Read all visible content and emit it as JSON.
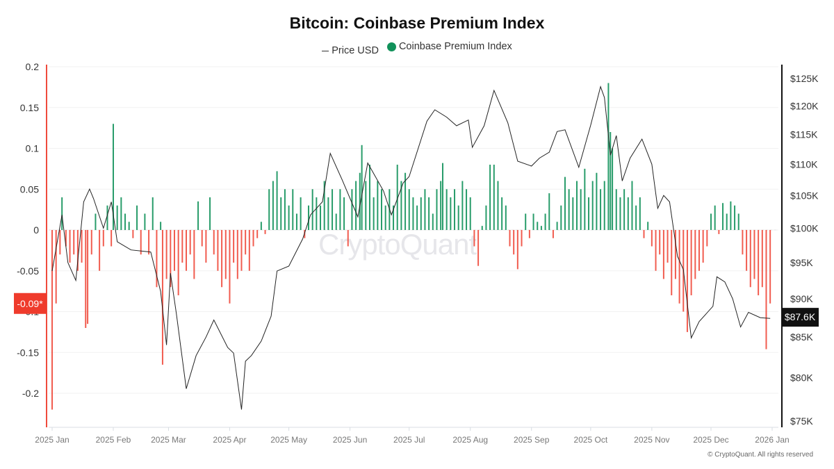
{
  "chart_data": {
    "type": "bar+line",
    "title": "Bitcoin: Coinbase Premium Index",
    "legend": [
      {
        "name": "Price USD",
        "symbol": "line",
        "color": "#333333"
      },
      {
        "name": "Coinbase Premium Index",
        "symbol": "dot",
        "color": "#11915a"
      }
    ],
    "legend_position": "top-center",
    "watermark": "CryptoQuant",
    "copyright": "© CryptoQuant. All rights reserved",
    "grid": true,
    "x_axis": {
      "type": "date",
      "range": [
        "2025-01-01",
        "2026-01-01"
      ],
      "ticks": [
        "2025 Jan",
        "2025 Feb",
        "2025 Mar",
        "2025 Apr",
        "2025 May",
        "2025 Jun",
        "2025 Jul",
        "2025 Aug",
        "2025 Sep",
        "2025 Oct",
        "2025 Nov",
        "2025 Dec",
        "2026 Jan"
      ],
      "tick_dates": [
        "2025-01-01",
        "2025-02-01",
        "2025-03-01",
        "2025-04-01",
        "2025-05-01",
        "2025-06-01",
        "2025-07-01",
        "2025-08-01",
        "2025-09-01",
        "2025-10-01",
        "2025-11-01",
        "2025-12-01",
        "2026-01-01"
      ]
    },
    "y_left": {
      "range": [
        -0.24,
        0.2
      ],
      "ticks": [
        "0.2",
        "0.15",
        "0.1",
        "0.05",
        "0",
        "-0.05",
        "-0.1",
        "-0.15",
        "-0.2"
      ],
      "tick_values": [
        0.2,
        0.15,
        0.1,
        0.05,
        0,
        -0.05,
        -0.1,
        -0.15,
        -0.2
      ],
      "current_label": "-0.09*",
      "current_value": -0.09
    },
    "y_right": {
      "scale": "log",
      "range": [
        75000,
        128000
      ],
      "ticks": [
        "$125K",
        "$120K",
        "$115K",
        "$110K",
        "$105K",
        "$100K",
        "$95K",
        "$90K",
        "$85K",
        "$80K",
        "$75K"
      ],
      "tick_values": [
        125000,
        120000,
        115000,
        110000,
        105000,
        100000,
        95000,
        90000,
        85000,
        80000,
        75000
      ],
      "current_label": "$87.6K",
      "current_value": 87600
    },
    "colors": {
      "positive": "#11915a",
      "negative": "#ef4a3c",
      "price": "#222222",
      "current_premium_badge": "#ef3b2c",
      "current_price_badge": "#111111"
    },
    "premium": [
      [
        "2025-01-01",
        -0.22
      ],
      [
        "2025-01-03",
        -0.09
      ],
      [
        "2025-01-05",
        -0.03
      ],
      [
        "2025-01-06",
        0.04
      ],
      [
        "2025-01-08",
        -0.02
      ],
      [
        "2025-01-10",
        -0.04
      ],
      [
        "2025-01-12",
        -0.03
      ],
      [
        "2025-01-14",
        -0.05
      ],
      [
        "2025-01-16",
        -0.04
      ],
      [
        "2025-01-18",
        -0.12
      ],
      [
        "2025-01-19",
        -0.115
      ],
      [
        "2025-01-21",
        -0.03
      ],
      [
        "2025-01-23",
        0.02
      ],
      [
        "2025-01-25",
        -0.05
      ],
      [
        "2025-01-27",
        -0.02
      ],
      [
        "2025-01-29",
        0.03
      ],
      [
        "2025-01-31",
        -0.02
      ],
      [
        "2025-02-01",
        0.13
      ],
      [
        "2025-02-03",
        0.03
      ],
      [
        "2025-02-05",
        0.04
      ],
      [
        "2025-02-07",
        0.02
      ],
      [
        "2025-02-09",
        0.01
      ],
      [
        "2025-02-11",
        -0.01
      ],
      [
        "2025-02-13",
        0.03
      ],
      [
        "2025-02-15",
        -0.03
      ],
      [
        "2025-02-17",
        0.02
      ],
      [
        "2025-02-19",
        -0.03
      ],
      [
        "2025-02-21",
        0.04
      ],
      [
        "2025-02-23",
        -0.07
      ],
      [
        "2025-02-25",
        0.01
      ],
      [
        "2025-02-26",
        -0.165
      ],
      [
        "2025-02-28",
        -0.06
      ],
      [
        "2025-03-02",
        -0.07
      ],
      [
        "2025-03-04",
        -0.05
      ],
      [
        "2025-03-06",
        -0.08
      ],
      [
        "2025-03-08",
        -0.04
      ],
      [
        "2025-03-10",
        -0.05
      ],
      [
        "2025-03-12",
        -0.03
      ],
      [
        "2025-03-14",
        -0.06
      ],
      [
        "2025-03-16",
        0.035
      ],
      [
        "2025-03-18",
        -0.02
      ],
      [
        "2025-03-20",
        -0.04
      ],
      [
        "2025-03-22",
        0.04
      ],
      [
        "2025-03-24",
        -0.03
      ],
      [
        "2025-03-26",
        -0.05
      ],
      [
        "2025-03-28",
        -0.07
      ],
      [
        "2025-03-30",
        -0.06
      ],
      [
        "2025-04-01",
        -0.09
      ],
      [
        "2025-04-03",
        -0.04
      ],
      [
        "2025-04-05",
        -0.06
      ],
      [
        "2025-04-07",
        -0.05
      ],
      [
        "2025-04-09",
        -0.03
      ],
      [
        "2025-04-11",
        -0.05
      ],
      [
        "2025-04-13",
        -0.02
      ],
      [
        "2025-04-15",
        -0.01
      ],
      [
        "2025-04-17",
        0.01
      ],
      [
        "2025-04-19",
        -0.005
      ],
      [
        "2025-04-21",
        0.05
      ],
      [
        "2025-04-23",
        0.06
      ],
      [
        "2025-04-25",
        0.072
      ],
      [
        "2025-04-27",
        0.04
      ],
      [
        "2025-04-29",
        0.05
      ],
      [
        "2025-05-01",
        0.03
      ],
      [
        "2025-05-03",
        0.05
      ],
      [
        "2025-05-05",
        0.02
      ],
      [
        "2025-05-07",
        0.04
      ],
      [
        "2025-05-09",
        -0.01
      ],
      [
        "2025-05-11",
        0.03
      ],
      [
        "2025-05-13",
        0.05
      ],
      [
        "2025-05-15",
        0.04
      ],
      [
        "2025-05-17",
        0.03
      ],
      [
        "2025-05-19",
        0.06
      ],
      [
        "2025-05-21",
        0.04
      ],
      [
        "2025-05-23",
        0.05
      ],
      [
        "2025-05-25",
        0.02
      ],
      [
        "2025-05-27",
        0.05
      ],
      [
        "2025-05-29",
        0.04
      ],
      [
        "2025-05-31",
        -0.02
      ],
      [
        "2025-06-02",
        0.05
      ],
      [
        "2025-06-04",
        0.06
      ],
      [
        "2025-06-06",
        0.07
      ],
      [
        "2025-06-07",
        0.104
      ],
      [
        "2025-06-09",
        0.06
      ],
      [
        "2025-06-11",
        0.08
      ],
      [
        "2025-06-13",
        0.04
      ],
      [
        "2025-06-15",
        0.06
      ],
      [
        "2025-06-17",
        0.05
      ],
      [
        "2025-06-19",
        0.03
      ],
      [
        "2025-06-21",
        0.05
      ],
      [
        "2025-06-23",
        0.03
      ],
      [
        "2025-06-25",
        0.08
      ],
      [
        "2025-06-27",
        0.06
      ],
      [
        "2025-06-29",
        0.07
      ],
      [
        "2025-07-01",
        0.05
      ],
      [
        "2025-07-03",
        0.04
      ],
      [
        "2025-07-05",
        0.03
      ],
      [
        "2025-07-07",
        0.04
      ],
      [
        "2025-07-09",
        0.05
      ],
      [
        "2025-07-11",
        0.04
      ],
      [
        "2025-07-13",
        0.02
      ],
      [
        "2025-07-15",
        0.05
      ],
      [
        "2025-07-17",
        0.06
      ],
      [
        "2025-07-18",
        0.082
      ],
      [
        "2025-07-20",
        0.05
      ],
      [
        "2025-07-22",
        0.04
      ],
      [
        "2025-07-24",
        0.05
      ],
      [
        "2025-07-26",
        0.03
      ],
      [
        "2025-07-28",
        0.06
      ],
      [
        "2025-07-30",
        0.05
      ],
      [
        "2025-08-01",
        0.04
      ],
      [
        "2025-08-03",
        -0.02
      ],
      [
        "2025-08-05",
        -0.044
      ],
      [
        "2025-08-07",
        0.005
      ],
      [
        "2025-08-09",
        0.03
      ],
      [
        "2025-08-11",
        0.08
      ],
      [
        "2025-08-13",
        0.08
      ],
      [
        "2025-08-15",
        0.06
      ],
      [
        "2025-08-17",
        0.04
      ],
      [
        "2025-08-19",
        0.03
      ],
      [
        "2025-08-21",
        -0.02
      ],
      [
        "2025-08-23",
        -0.03
      ],
      [
        "2025-08-25",
        -0.048
      ],
      [
        "2025-08-27",
        -0.02
      ],
      [
        "2025-08-29",
        0.02
      ],
      [
        "2025-08-31",
        -0.01
      ],
      [
        "2025-09-02",
        0.02
      ],
      [
        "2025-09-04",
        0.01
      ],
      [
        "2025-09-06",
        0.005
      ],
      [
        "2025-09-08",
        0.02
      ],
      [
        "2025-09-10",
        0.045
      ],
      [
        "2025-09-12",
        -0.01
      ],
      [
        "2025-09-14",
        0.01
      ],
      [
        "2025-09-16",
        0.03
      ],
      [
        "2025-09-18",
        0.065
      ],
      [
        "2025-09-20",
        0.05
      ],
      [
        "2025-09-22",
        0.04
      ],
      [
        "2025-09-24",
        0.06
      ],
      [
        "2025-09-26",
        0.05
      ],
      [
        "2025-09-28",
        0.075
      ],
      [
        "2025-09-30",
        0.04
      ],
      [
        "2025-10-02",
        0.06
      ],
      [
        "2025-10-04",
        0.07
      ],
      [
        "2025-10-06",
        0.05
      ],
      [
        "2025-10-08",
        0.06
      ],
      [
        "2025-10-10",
        0.18
      ],
      [
        "2025-10-11",
        0.12
      ],
      [
        "2025-10-12",
        0.1
      ],
      [
        "2025-10-14",
        0.05
      ],
      [
        "2025-10-16",
        0.04
      ],
      [
        "2025-10-18",
        0.05
      ],
      [
        "2025-10-20",
        0.04
      ],
      [
        "2025-10-22",
        0.06
      ],
      [
        "2025-10-24",
        0.03
      ],
      [
        "2025-10-26",
        0.04
      ],
      [
        "2025-10-28",
        -0.01
      ],
      [
        "2025-10-30",
        0.01
      ],
      [
        "2025-11-01",
        -0.02
      ],
      [
        "2025-11-03",
        -0.05
      ],
      [
        "2025-11-05",
        -0.03
      ],
      [
        "2025-11-07",
        -0.06
      ],
      [
        "2025-11-09",
        -0.04
      ],
      [
        "2025-11-11",
        -0.08
      ],
      [
        "2025-11-13",
        -0.06
      ],
      [
        "2025-11-15",
        -0.09
      ],
      [
        "2025-11-17",
        -0.1
      ],
      [
        "2025-11-19",
        -0.125
      ],
      [
        "2025-11-21",
        -0.08
      ],
      [
        "2025-11-23",
        -0.06
      ],
      [
        "2025-11-25",
        -0.05
      ],
      [
        "2025-11-27",
        -0.04
      ],
      [
        "2025-11-29",
        -0.02
      ],
      [
        "2025-12-01",
        0.02
      ],
      [
        "2025-12-03",
        0.03
      ],
      [
        "2025-12-05",
        -0.005
      ],
      [
        "2025-12-07",
        0.033
      ],
      [
        "2025-12-09",
        0.02
      ],
      [
        "2025-12-11",
        0.035
      ],
      [
        "2025-12-13",
        0.03
      ],
      [
        "2025-12-15",
        0.02
      ],
      [
        "2025-12-17",
        -0.03
      ],
      [
        "2025-12-19",
        -0.05
      ],
      [
        "2025-12-21",
        -0.07
      ],
      [
        "2025-12-23",
        -0.06
      ],
      [
        "2025-12-25",
        -0.08
      ],
      [
        "2025-12-27",
        -0.07
      ],
      [
        "2025-12-29",
        -0.146
      ],
      [
        "2025-12-31",
        -0.09
      ]
    ],
    "price": [
      [
        "2025-01-01",
        93800
      ],
      [
        "2025-01-06",
        102000
      ],
      [
        "2025-01-09",
        95000
      ],
      [
        "2025-01-13",
        92500
      ],
      [
        "2025-01-17",
        104000
      ],
      [
        "2025-01-20",
        106000
      ],
      [
        "2025-01-22",
        104500
      ],
      [
        "2025-01-27",
        100000
      ],
      [
        "2025-01-31",
        104000
      ],
      [
        "2025-02-03",
        98000
      ],
      [
        "2025-02-10",
        96800
      ],
      [
        "2025-02-20",
        96500
      ],
      [
        "2025-02-25",
        91000
      ],
      [
        "2025-02-28",
        84000
      ],
      [
        "2025-03-02",
        93500
      ],
      [
        "2025-03-05",
        88000
      ],
      [
        "2025-03-10",
        78700
      ],
      [
        "2025-03-15",
        82700
      ],
      [
        "2025-03-20",
        85000
      ],
      [
        "2025-03-24",
        87200
      ],
      [
        "2025-03-31",
        83700
      ],
      [
        "2025-04-03",
        83000
      ],
      [
        "2025-04-07",
        76300
      ],
      [
        "2025-04-09",
        82000
      ],
      [
        "2025-04-12",
        82700
      ],
      [
        "2025-04-17",
        84500
      ],
      [
        "2025-04-22",
        87700
      ],
      [
        "2025-04-25",
        93800
      ],
      [
        "2025-05-01",
        94500
      ],
      [
        "2025-05-08",
        98400
      ],
      [
        "2025-05-12",
        102000
      ],
      [
        "2025-05-18",
        104000
      ],
      [
        "2025-05-22",
        111800
      ],
      [
        "2025-05-28",
        107500
      ],
      [
        "2025-06-05",
        101700
      ],
      [
        "2025-06-10",
        110200
      ],
      [
        "2025-06-18",
        105700
      ],
      [
        "2025-06-22",
        102000
      ],
      [
        "2025-06-28",
        107000
      ],
      [
        "2025-07-01",
        108000
      ],
      [
        "2025-07-10",
        117300
      ],
      [
        "2025-07-14",
        119300
      ],
      [
        "2025-07-20",
        118000
      ],
      [
        "2025-07-25",
        116500
      ],
      [
        "2025-07-31",
        117500
      ],
      [
        "2025-08-02",
        112800
      ],
      [
        "2025-08-08",
        116500
      ],
      [
        "2025-08-13",
        122800
      ],
      [
        "2025-08-20",
        117000
      ],
      [
        "2025-08-25",
        110500
      ],
      [
        "2025-09-01",
        109700
      ],
      [
        "2025-09-05",
        111000
      ],
      [
        "2025-09-10",
        112000
      ],
      [
        "2025-09-14",
        115500
      ],
      [
        "2025-09-18",
        115800
      ],
      [
        "2025-09-25",
        109500
      ],
      [
        "2025-10-01",
        116600
      ],
      [
        "2025-10-06",
        123500
      ],
      [
        "2025-10-08",
        121500
      ],
      [
        "2025-10-11",
        111500
      ],
      [
        "2025-10-14",
        114800
      ],
      [
        "2025-10-17",
        107300
      ],
      [
        "2025-10-21",
        111000
      ],
      [
        "2025-10-27",
        114200
      ],
      [
        "2025-11-01",
        110000
      ],
      [
        "2025-11-04",
        103000
      ],
      [
        "2025-11-07",
        105000
      ],
      [
        "2025-11-10",
        104000
      ],
      [
        "2025-11-14",
        95900
      ],
      [
        "2025-11-17",
        94000
      ],
      [
        "2025-11-21",
        84900
      ],
      [
        "2025-11-25",
        87000
      ],
      [
        "2025-12-02",
        89000
      ],
      [
        "2025-12-04",
        93000
      ],
      [
        "2025-12-08",
        92300
      ],
      [
        "2025-12-12",
        90000
      ],
      [
        "2025-12-16",
        86300
      ],
      [
        "2025-12-20",
        88200
      ],
      [
        "2025-12-26",
        87500
      ],
      [
        "2025-12-31",
        87400
      ]
    ]
  }
}
